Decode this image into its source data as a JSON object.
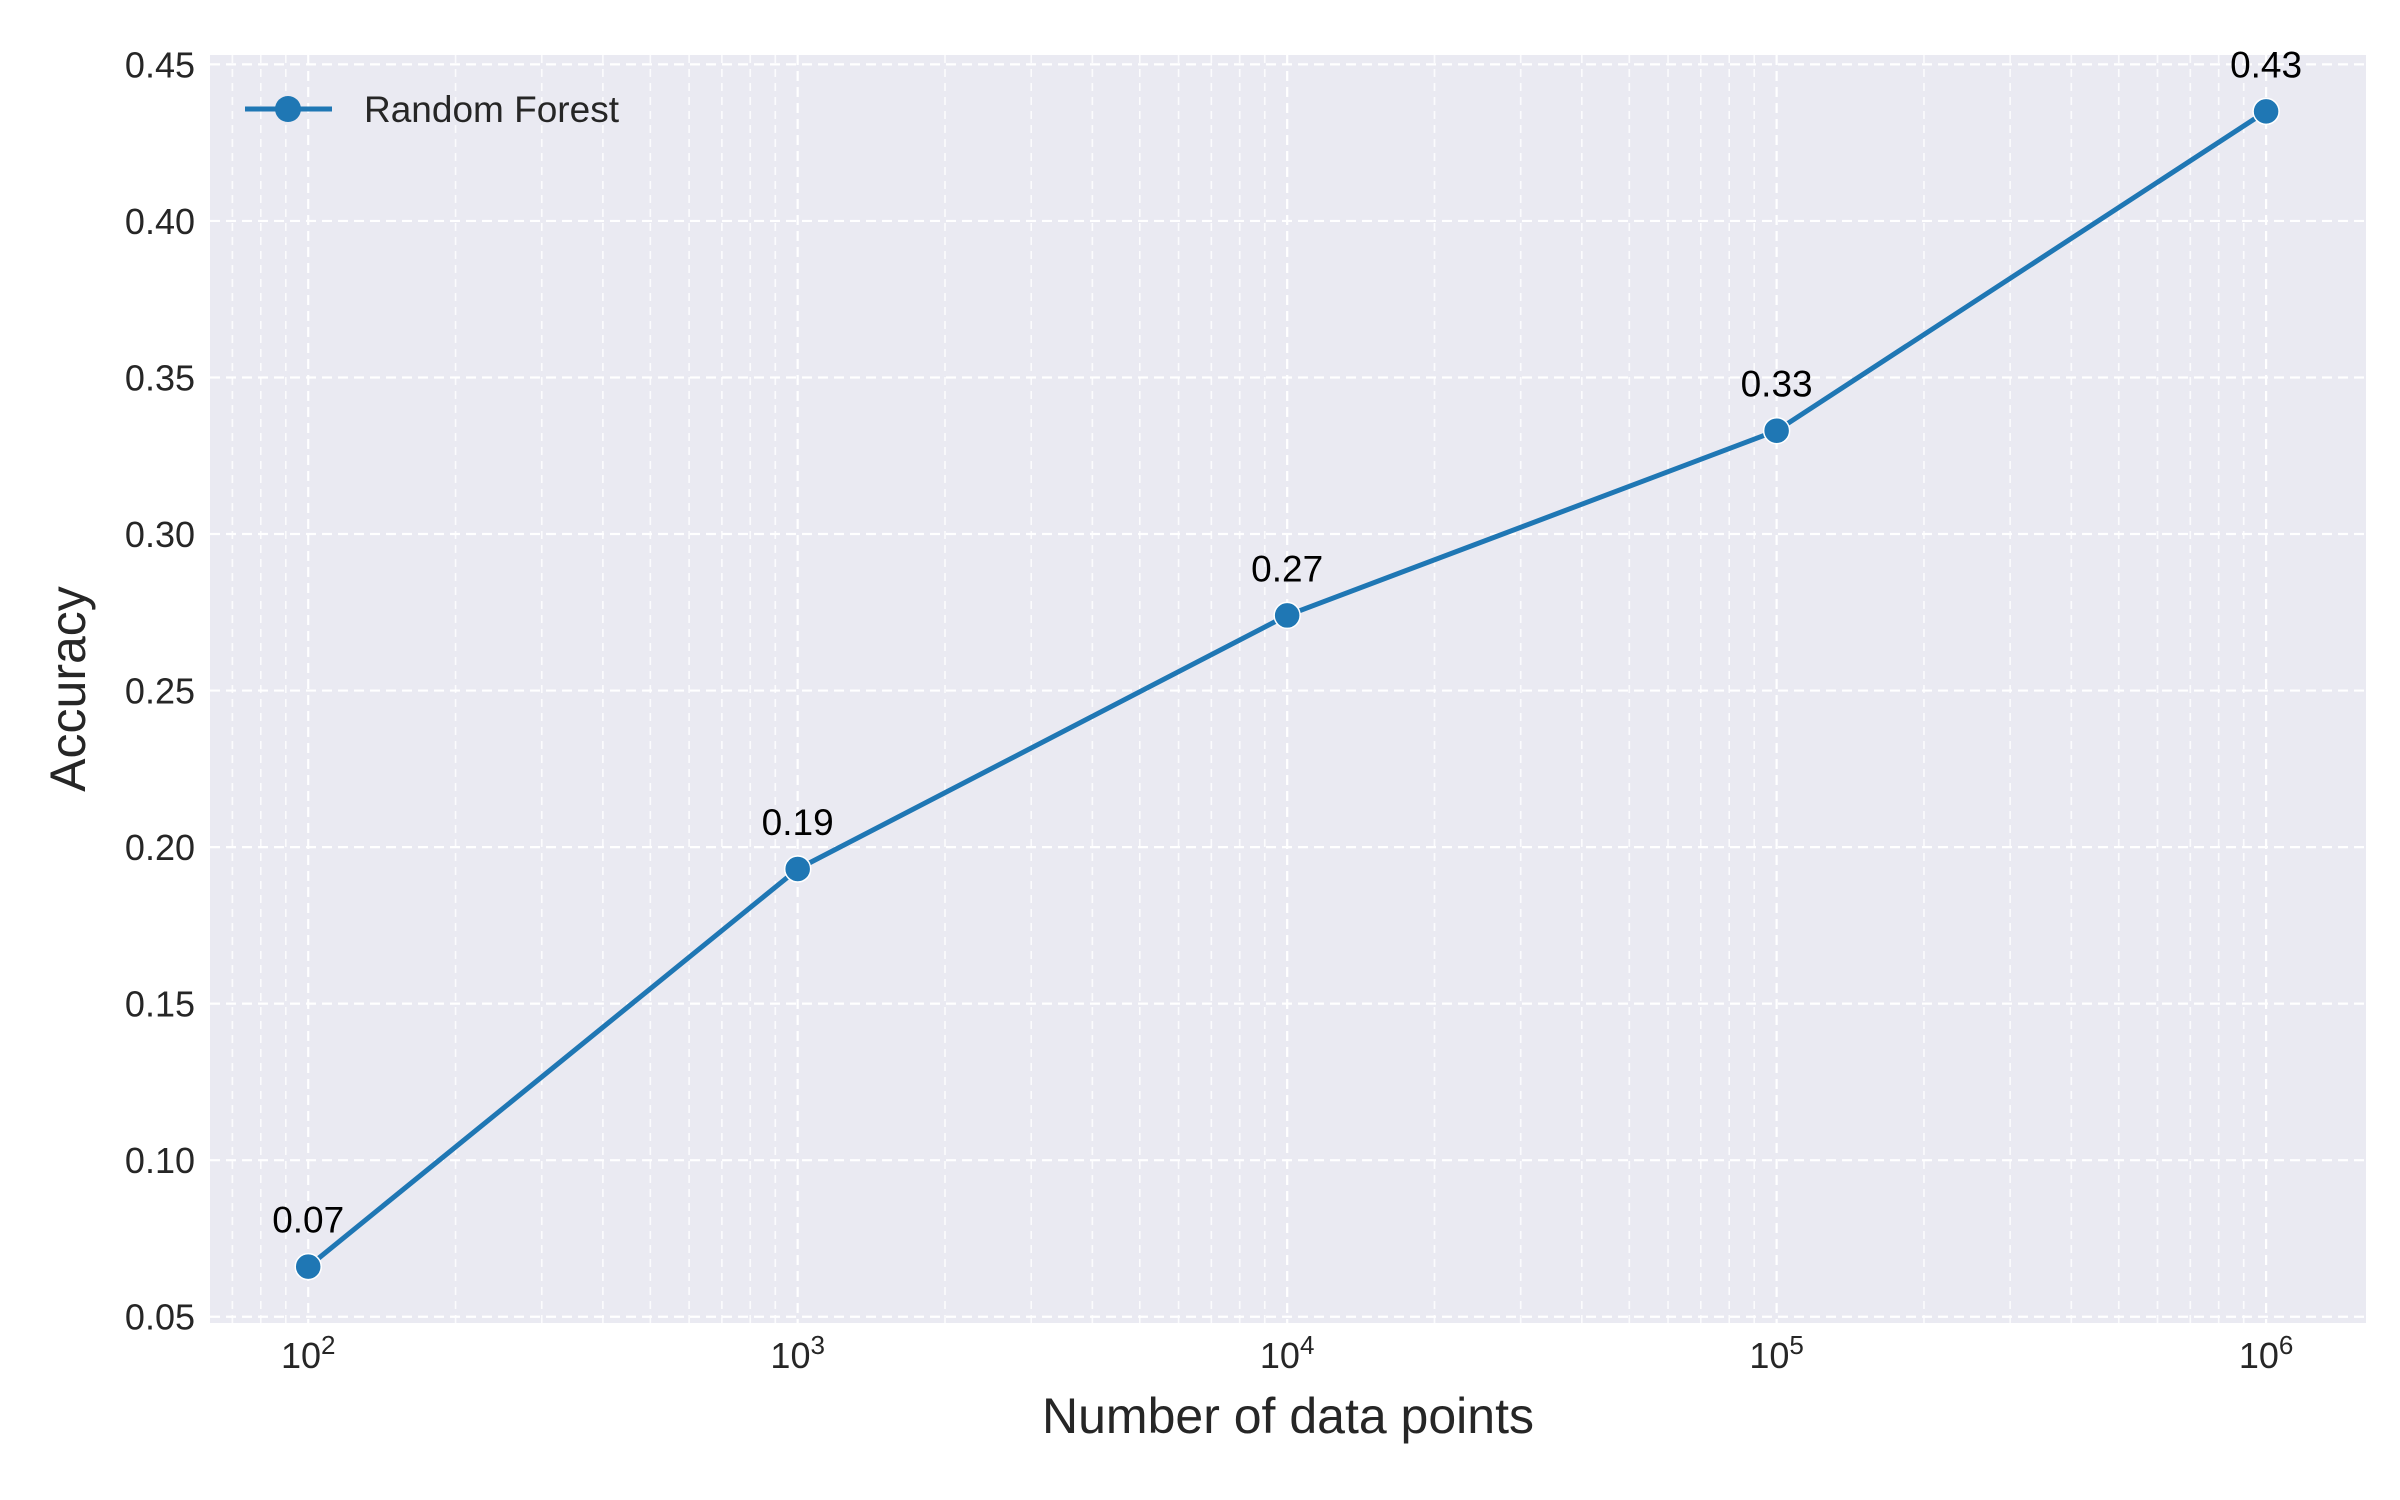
{
  "chart_data": {
    "type": "line",
    "title": "",
    "xlabel": "Number of data points",
    "ylabel": "Accuracy",
    "x_scale": "log",
    "xlim": [
      63,
      1600000
    ],
    "ylim": [
      0.048,
      0.453
    ],
    "grid": true,
    "grid_style": "dashed",
    "legend": {
      "placement": "top-left"
    },
    "x_ticks": [
      {
        "value": 100,
        "base": "10",
        "exp": "2"
      },
      {
        "value": 1000,
        "base": "10",
        "exp": "3"
      },
      {
        "value": 10000,
        "base": "10",
        "exp": "4"
      },
      {
        "value": 100000,
        "base": "10",
        "exp": "5"
      },
      {
        "value": 1000000,
        "base": "10",
        "exp": "6"
      }
    ],
    "y_ticks": [
      {
        "value": 0.05,
        "label": "0.05"
      },
      {
        "value": 0.1,
        "label": "0.10"
      },
      {
        "value": 0.15,
        "label": "0.15"
      },
      {
        "value": 0.2,
        "label": "0.20"
      },
      {
        "value": 0.25,
        "label": "0.25"
      },
      {
        "value": 0.3,
        "label": "0.30"
      },
      {
        "value": 0.35,
        "label": "0.35"
      },
      {
        "value": 0.4,
        "label": "0.40"
      },
      {
        "value": 0.45,
        "label": "0.45"
      }
    ],
    "series": [
      {
        "name": "Random Forest",
        "color": "#1f77b4",
        "marker": "circle",
        "points": [
          {
            "x": 100,
            "y": 0.066,
            "label": "0.07"
          },
          {
            "x": 1000,
            "y": 0.193,
            "label": "0.19"
          },
          {
            "x": 10000,
            "y": 0.274,
            "label": "0.27"
          },
          {
            "x": 100000,
            "y": 0.333,
            "label": "0.33"
          },
          {
            "x": 1000000,
            "y": 0.435,
            "label": "0.43"
          }
        ]
      }
    ],
    "colors": {
      "plot_background": "#eaeaf2",
      "grid": "#ffffff",
      "text": "#262626"
    }
  }
}
